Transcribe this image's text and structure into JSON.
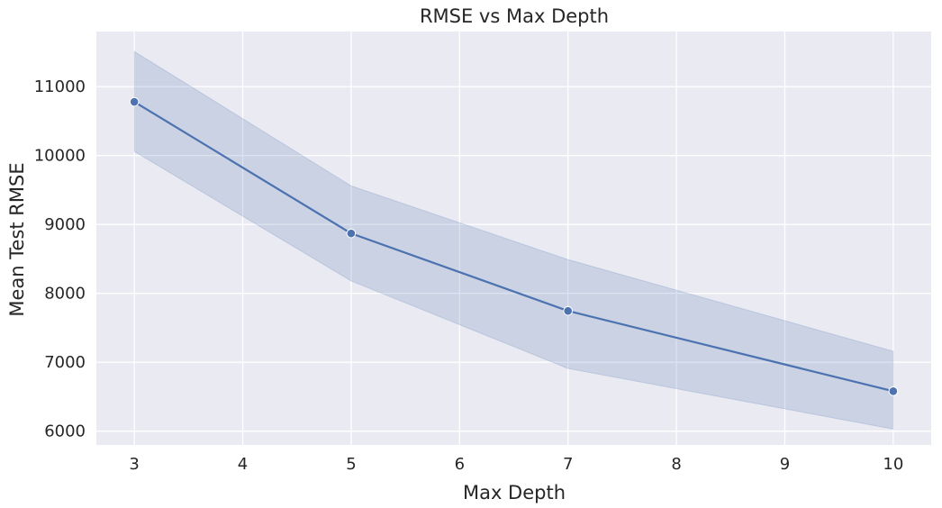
{
  "chart_data": {
    "type": "line",
    "title": "RMSE vs Max Depth",
    "xlabel": "Max Depth",
    "ylabel": "Mean Test RMSE",
    "x": [
      3,
      5,
      7,
      10
    ],
    "series": [
      {
        "values": [
          10780,
          8870,
          7745,
          6580
        ],
        "ci_upper": [
          11510,
          9560,
          8490,
          7160
        ],
        "ci_lower": [
          10060,
          8180,
          6910,
          6030
        ]
      }
    ],
    "x_ticks": [
      3,
      4,
      5,
      6,
      7,
      8,
      9,
      10
    ],
    "y_ticks": [
      6000,
      7000,
      8000,
      9000,
      10000,
      11000
    ],
    "xlim": [
      2.65,
      10.35
    ],
    "ylim": [
      5800,
      11800
    ],
    "grid": true,
    "line_color": "#4c72b0",
    "band_color": "#4c72b0",
    "background_color": "#eaeaf2",
    "grid_color": "#ffffff"
  }
}
